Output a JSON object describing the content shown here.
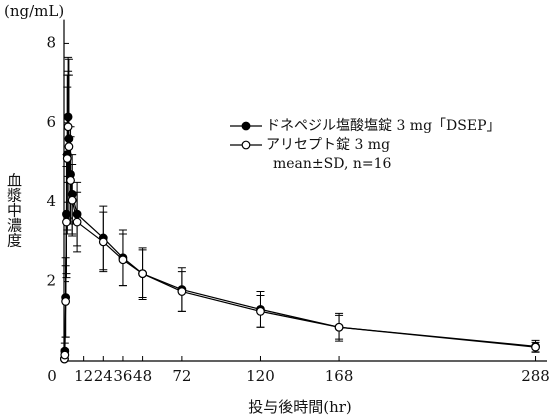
{
  "chart_data": {
    "type": "line",
    "unit_label": "(ng/mL)",
    "y_label": "血漿中濃度",
    "x_label": "投与後時間(hr)",
    "annotation": "mean±SD, n=16",
    "x": [
      0.25,
      0.5,
      1,
      1.5,
      2,
      2.5,
      3,
      4,
      5,
      8,
      24,
      36,
      48,
      72,
      120,
      168,
      288
    ],
    "series": [
      {
        "name": "ドネペジル塩酸塩錠 3 mg「DSEP」",
        "color": "#000000",
        "marker": "filled",
        "values": [
          0.05,
          0.25,
          1.6,
          3.7,
          5.2,
          6.15,
          5.6,
          4.7,
          4.2,
          3.7,
          3.1,
          2.6,
          2.2,
          1.8,
          1.3,
          0.85,
          0.37
        ],
        "errors": [
          0.02,
          0.2,
          1.0,
          1.5,
          2.0,
          1.5,
          2.0,
          1.2,
          1.0,
          0.8,
          0.8,
          0.7,
          0.65,
          0.55,
          0.45,
          0.35,
          0.15
        ]
      },
      {
        "name": "アリセプト錠 3 mg",
        "color": "#000000",
        "marker": "open",
        "values": [
          0.05,
          0.15,
          1.5,
          3.5,
          5.1,
          5.9,
          5.4,
          4.55,
          4.05,
          3.5,
          3.0,
          2.55,
          2.2,
          1.75,
          1.25,
          0.85,
          0.35
        ],
        "errors": [
          0.02,
          0.15,
          0.9,
          1.4,
          1.8,
          1.4,
          1.8,
          1.1,
          0.9,
          0.75,
          0.75,
          0.65,
          0.6,
          0.5,
          0.4,
          0.3,
          0.12
        ]
      }
    ],
    "xlim": [
      0,
      295
    ],
    "ylim": [
      0,
      8.6
    ],
    "xticks": [
      0,
      12,
      24,
      36,
      48,
      72,
      120,
      168,
      288
    ],
    "yticks": [
      2,
      4,
      6,
      8
    ]
  }
}
